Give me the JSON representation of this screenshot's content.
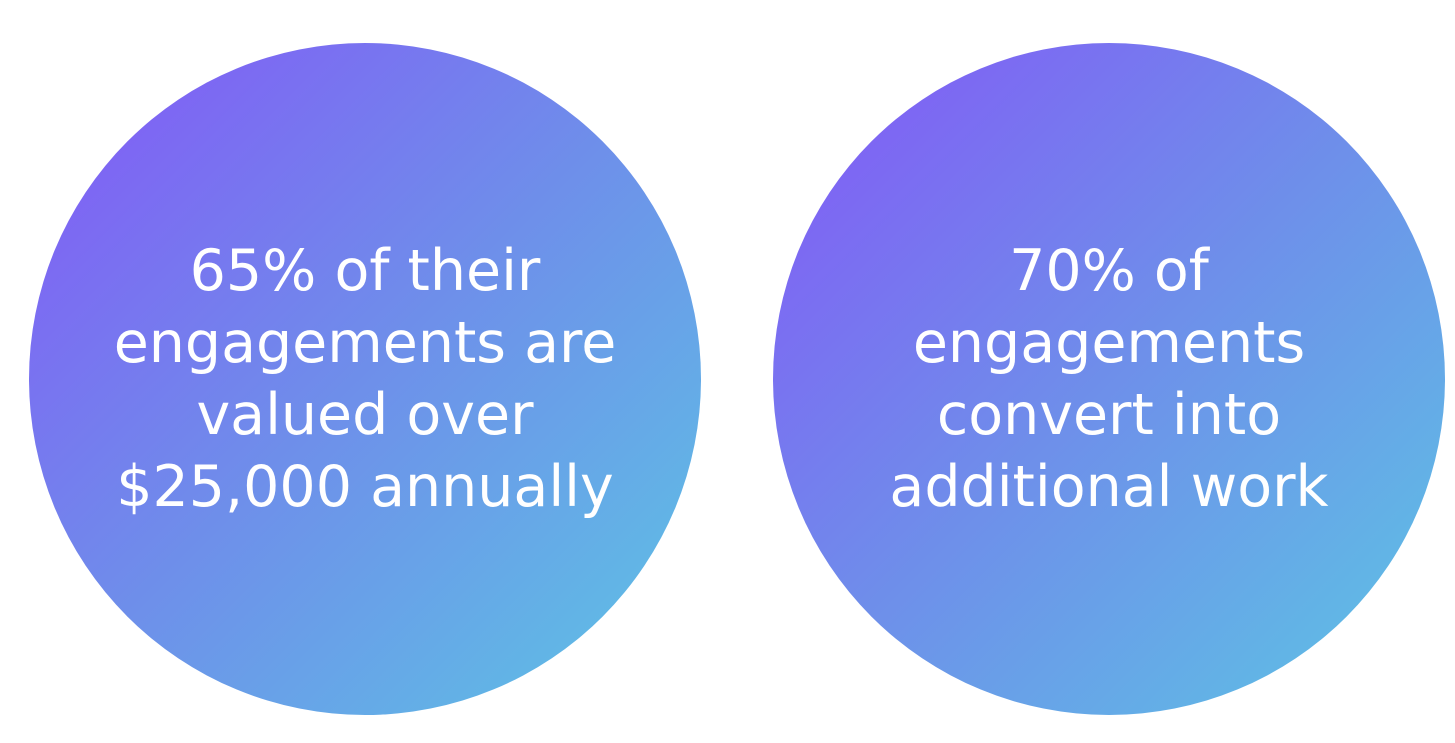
{
  "colors": {
    "gradient_start": "#8456f7",
    "gradient_mid": "#6e8fea",
    "gradient_end": "#5cc6e4",
    "text": "#ffffff",
    "background": "#ffffff"
  },
  "stats": [
    {
      "lines": [
        "65% of their",
        "engagements are",
        "valued over",
        "$25,000 annually"
      ]
    },
    {
      "lines": [
        "70% of",
        "engagements",
        "convert into",
        "additional work"
      ]
    }
  ]
}
